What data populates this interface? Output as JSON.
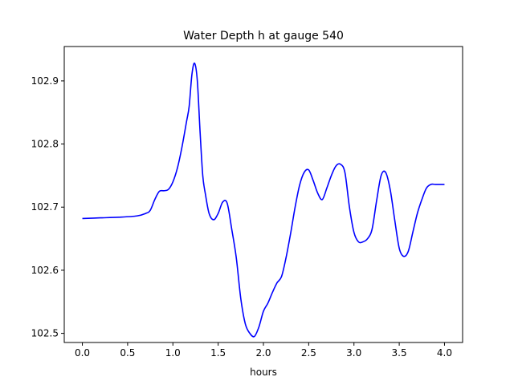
{
  "chart_data": {
    "type": "line",
    "title": "Water Depth h at gauge 540",
    "xlabel": "hours",
    "ylabel": "",
    "xlim": [
      -0.2,
      4.2
    ],
    "ylim": [
      102.4855,
      102.9545
    ],
    "xticks": [
      0.0,
      0.5,
      1.0,
      1.5,
      2.0,
      2.5,
      3.0,
      3.5,
      4.0
    ],
    "xtick_labels": [
      "0.0",
      "0.5",
      "1.0",
      "1.5",
      "2.0",
      "2.5",
      "3.0",
      "3.5",
      "4.0"
    ],
    "yticks": [
      102.5,
      102.6,
      102.7,
      102.8,
      102.9
    ],
    "ytick_labels": [
      "102.5",
      "102.6",
      "102.7",
      "102.8",
      "102.9"
    ],
    "grid": false,
    "legend": "none",
    "series": [
      {
        "color": "#0000ff",
        "x": [
          0.0,
          0.2,
          0.4,
          0.6,
          0.7,
          0.75,
          0.8,
          0.85,
          0.9,
          0.95,
          1.0,
          1.05,
          1.1,
          1.15,
          1.18,
          1.21,
          1.24,
          1.27,
          1.3,
          1.33,
          1.36,
          1.4,
          1.45,
          1.5,
          1.55,
          1.6,
          1.65,
          1.7,
          1.75,
          1.8,
          1.85,
          1.9,
          1.95,
          2.0,
          2.05,
          2.1,
          2.15,
          2.2,
          2.25,
          2.3,
          2.35,
          2.4,
          2.45,
          2.5,
          2.55,
          2.6,
          2.65,
          2.7,
          2.75,
          2.8,
          2.85,
          2.9,
          2.95,
          3.0,
          3.05,
          3.1,
          3.15,
          3.2,
          3.25,
          3.3,
          3.35,
          3.4,
          3.45,
          3.5,
          3.55,
          3.6,
          3.65,
          3.7,
          3.75,
          3.8,
          3.85,
          3.9,
          3.95,
          4.0
        ],
        "y": [
          102.682,
          102.683,
          102.684,
          102.686,
          102.69,
          102.695,
          102.712,
          102.725,
          102.726,
          102.728,
          102.74,
          102.762,
          102.795,
          102.835,
          102.86,
          102.91,
          102.928,
          102.9,
          102.82,
          102.75,
          102.72,
          102.69,
          102.68,
          102.69,
          102.708,
          102.706,
          102.665,
          102.62,
          102.555,
          102.515,
          102.5,
          102.495,
          102.51,
          102.535,
          102.548,
          102.565,
          102.58,
          102.59,
          102.62,
          102.658,
          102.7,
          102.735,
          102.755,
          102.759,
          102.742,
          102.722,
          102.712,
          102.73,
          102.75,
          102.765,
          102.768,
          102.755,
          102.7,
          102.66,
          102.645,
          102.645,
          102.65,
          102.665,
          102.71,
          102.75,
          102.755,
          102.728,
          102.68,
          102.635,
          102.622,
          102.63,
          102.66,
          102.69,
          102.712,
          102.73,
          102.736,
          102.736,
          102.736,
          102.736
        ]
      }
    ]
  }
}
